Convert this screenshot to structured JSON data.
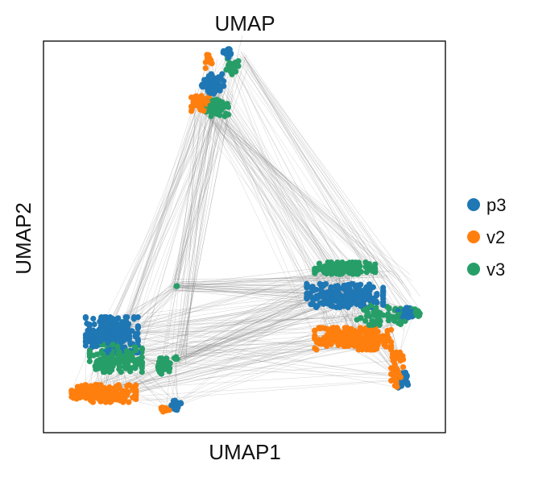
{
  "chart_data": {
    "type": "scatter",
    "title": "UMAP",
    "xlabel": "UMAP1",
    "ylabel": "UMAP2",
    "xticks": [],
    "yticks": [],
    "xlim": [
      0,
      10
    ],
    "ylim": [
      0,
      10
    ],
    "grid": false,
    "legend_position": "right",
    "edges": true,
    "edge_color": "#888888",
    "series": [
      {
        "name": "p3",
        "color": "#1f77b4",
        "clusters": [
          {
            "x": 4.2,
            "y": 8.9,
            "spread": [
              0.28,
              0.26
            ],
            "n": 70
          },
          {
            "x": 4.6,
            "y": 9.7,
            "spread": [
              0.15,
              0.12
            ],
            "n": 20
          },
          {
            "x": 7.5,
            "y": 3.5,
            "spread": [
              0.95,
              0.3
            ],
            "n": 240
          },
          {
            "x": 9.0,
            "y": 3.05,
            "spread": [
              0.18,
              0.14
            ],
            "n": 30
          },
          {
            "x": 8.95,
            "y": 1.35,
            "spread": [
              0.12,
              0.2
            ],
            "n": 40
          },
          {
            "x": 1.7,
            "y": 2.5,
            "spread": [
              0.65,
              0.45
            ],
            "n": 230
          },
          {
            "x": 3.3,
            "y": 0.7,
            "spread": [
              0.12,
              0.12
            ],
            "n": 20
          }
        ]
      },
      {
        "name": "v2",
        "color": "#ff7f0e",
        "clusters": [
          {
            "x": 3.9,
            "y": 8.4,
            "spread": [
              0.22,
              0.2
            ],
            "n": 55
          },
          {
            "x": 4.1,
            "y": 9.55,
            "spread": [
              0.1,
              0.25
            ],
            "n": 15
          },
          {
            "x": 7.7,
            "y": 2.4,
            "spread": [
              0.95,
              0.28
            ],
            "n": 260
          },
          {
            "x": 8.8,
            "y": 1.6,
            "spread": [
              0.15,
              0.45
            ],
            "n": 50
          },
          {
            "x": 1.5,
            "y": 1.0,
            "spread": [
              0.8,
              0.22
            ],
            "n": 230
          },
          {
            "x": 3.05,
            "y": 0.6,
            "spread": [
              0.12,
              0.08
            ],
            "n": 15
          }
        ]
      },
      {
        "name": "v3",
        "color": "#279e68",
        "clusters": [
          {
            "x": 4.3,
            "y": 8.3,
            "spread": [
              0.3,
              0.22
            ],
            "n": 70
          },
          {
            "x": 4.7,
            "y": 9.35,
            "spread": [
              0.15,
              0.2
            ],
            "n": 20
          },
          {
            "x": 7.5,
            "y": 4.2,
            "spread": [
              0.75,
              0.15
            ],
            "n": 120
          },
          {
            "x": 8.4,
            "y": 3.0,
            "spread": [
              0.6,
              0.25
            ],
            "n": 60
          },
          {
            "x": 9.3,
            "y": 3.05,
            "spread": [
              0.15,
              0.1
            ],
            "n": 15
          },
          {
            "x": 1.8,
            "y": 1.9,
            "spread": [
              0.65,
              0.35
            ],
            "n": 150
          },
          {
            "x": 3.0,
            "y": 1.7,
            "spread": [
              0.15,
              0.2
            ],
            "n": 25
          },
          {
            "x": 3.3,
            "y": 1.9,
            "spread": [
              0.05,
              0.05
            ],
            "n": 4
          },
          {
            "x": 3.3,
            "y": 3.75,
            "spread": [
              0.04,
              0.04
            ],
            "n": 3
          }
        ]
      }
    ]
  }
}
